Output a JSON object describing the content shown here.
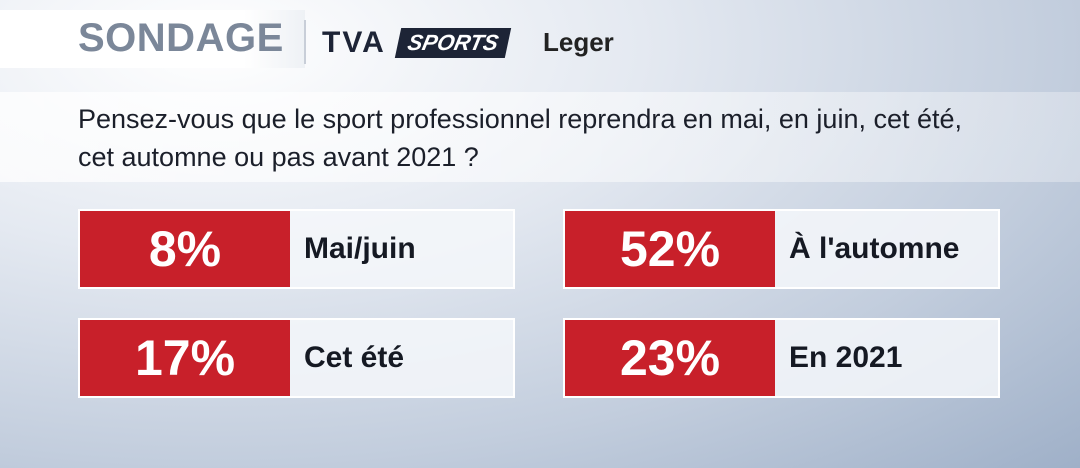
{
  "header": {
    "title": "SONDAGE",
    "logos": [
      "TVA",
      "SPORTS",
      "Leger"
    ]
  },
  "question": "Pensez-vous que le sport professionnel reprendra en mai, en juin, cet été, cet automne ou pas avant 2021 ?",
  "results": [
    {
      "value": "8%",
      "label": "Mai/juin"
    },
    {
      "value": "52%",
      "label": "À l'automne"
    },
    {
      "value": "17%",
      "label": "Cet été"
    },
    {
      "value": "23%",
      "label": "En 2021"
    }
  ]
}
